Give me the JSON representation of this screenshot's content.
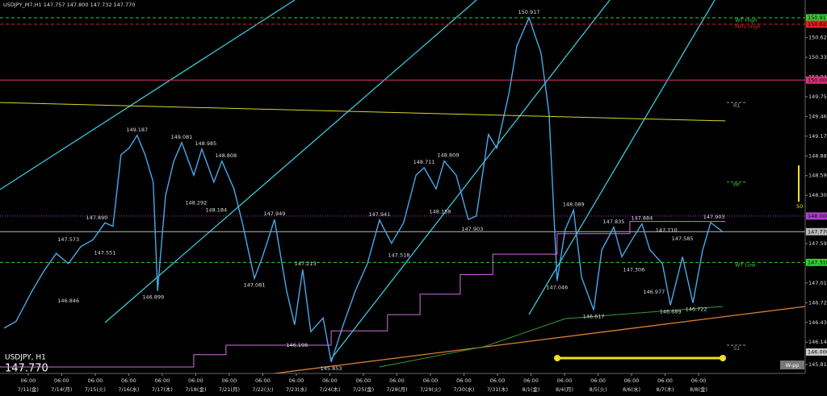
{
  "chart_data": {
    "type": "line",
    "header": "USDJPY_M7,H1  147.757 147.800 147.732 147.770",
    "symbol": "USDJPY, H1",
    "price": "147.770",
    "side_label": "50",
    "wpp": "W-pp",
    "xlim": [
      -0.84,
      23.18
    ],
    "ylim": [
      145.685,
      151.178
    ],
    "xticks": [
      {
        "value": 0,
        "label": "7/11(金)"
      },
      {
        "value": 1,
        "label": "7/14(月)"
      },
      {
        "value": 2,
        "label": "7/15(火)"
      },
      {
        "value": 3,
        "label": "7/16(水)"
      },
      {
        "value": 4,
        "label": "7/17(木)"
      },
      {
        "value": 5,
        "label": "7/18(金)"
      },
      {
        "value": 6,
        "label": "7/21(月)"
      },
      {
        "value": 7,
        "label": "7/22(火)"
      },
      {
        "value": 8,
        "label": "7/23(水)"
      },
      {
        "value": 9,
        "label": "7/24(木)"
      },
      {
        "value": 10,
        "label": "7/25(金)"
      },
      {
        "value": 11,
        "label": "7/28(月)"
      },
      {
        "value": 12,
        "label": "7/29(火)"
      },
      {
        "value": 13,
        "label": "7/30(水)"
      },
      {
        "value": 14,
        "label": "7/31(木)"
      },
      {
        "value": 15,
        "label": "8/1(金)"
      },
      {
        "value": 16,
        "label": "8/4(月)"
      },
      {
        "value": 17,
        "label": "8/5(火)"
      },
      {
        "value": 18,
        "label": "8/6(水)"
      },
      {
        "value": 19,
        "label": "8/7(木)"
      },
      {
        "value": 20,
        "label": "8/8(金)"
      }
    ],
    "xtick_times": [
      "06:00",
      "06:00",
      "06:00",
      "06:00",
      "06:00",
      "06:00",
      "06:00",
      "06:00",
      "06:00",
      "06:00",
      "06:00",
      "06:00",
      "06:00",
      "06:00",
      "06:00",
      "06:00",
      "06:00",
      "06:00",
      "06:00",
      "06:00",
      "06:00"
    ],
    "yticks": [
      150.625,
      150.335,
      150.045,
      149.755,
      149.465,
      149.175,
      148.885,
      148.595,
      148.305,
      147.595,
      147.015,
      146.725,
      146.435,
      146.145,
      145.815
    ],
    "series": [
      {
        "color": "#4aa8e8",
        "x": [
          -0.72,
          -0.36,
          0.12,
          0.48,
          0.84,
          1.2,
          1.57,
          1.93,
          2.29,
          2.53,
          2.77,
          3.01,
          3.25,
          3.49,
          3.73,
          3.86,
          4.1,
          4.34,
          4.58,
          4.94,
          5.18,
          5.54,
          5.78,
          6.14,
          6.39,
          6.75,
          6.99,
          7.35,
          7.71,
          7.95,
          8.19,
          8.43,
          8.8,
          9.04,
          9.4,
          9.76,
          10.12,
          10.48,
          10.84,
          11.2,
          11.57,
          11.81,
          12.17,
          12.41,
          12.77,
          13.13,
          13.37,
          13.73,
          13.98,
          14.34,
          14.58,
          14.94,
          15.3,
          15.54,
          15.78,
          16.02,
          16.27,
          16.51,
          16.87,
          17.11,
          17.47,
          17.71,
          18.07,
          18.31,
          18.55,
          18.92,
          19.16,
          19.52,
          19.83,
          20.12,
          20.36,
          20.72
        ],
        "values": [
          146.35,
          146.45,
          146.9,
          147.2,
          147.45,
          147.3,
          147.55,
          147.65,
          147.9,
          147.85,
          148.9,
          149.0,
          149.187,
          148.9,
          148.5,
          146.899,
          148.3,
          148.8,
          149.081,
          148.6,
          148.985,
          148.5,
          148.808,
          148.4,
          147.9,
          147.081,
          147.4,
          147.949,
          146.9,
          146.4,
          147.213,
          146.3,
          146.5,
          145.853,
          146.4,
          146.9,
          147.3,
          147.941,
          147.6,
          147.9,
          148.6,
          148.711,
          148.4,
          148.809,
          148.6,
          147.95,
          148.0,
          149.2,
          149.0,
          149.8,
          150.5,
          150.917,
          150.4,
          149.5,
          147.046,
          147.8,
          148.089,
          147.1,
          146.617,
          147.5,
          147.835,
          147.4,
          147.7,
          147.884,
          147.5,
          147.3,
          146.689,
          147.4,
          146.722,
          147.5,
          147.903,
          147.77
        ]
      },
      {
        "color": "#d6d62a",
        "x": [
          -0.84,
          20.8
        ],
        "values": [
          149.67,
          149.4
        ]
      },
      {
        "color": "#d070e0",
        "x": [
          -0.84,
          4.94,
          4.94,
          5.9,
          5.9,
          9.04,
          9.04,
          10.72,
          10.72,
          11.69,
          11.69,
          12.89,
          12.89,
          13.86,
          13.86,
          15.78,
          15.78,
          17.95,
          17.95,
          20.8
        ],
        "values": [
          145.78,
          145.78,
          145.96,
          145.96,
          146.1,
          146.1,
          146.31,
          146.31,
          146.55,
          146.55,
          146.85,
          146.85,
          147.14,
          147.14,
          147.44,
          147.44,
          147.74,
          147.74,
          147.92,
          147.92
        ]
      },
      {
        "color": "#3a9a3a",
        "x": [
          10.48,
          13.61,
          16.02,
          20.72
        ],
        "values": [
          145.78,
          146.08,
          146.49,
          146.67
        ]
      }
    ],
    "annotations": [
      {
        "x": 1.2,
        "value": 147.573,
        "side": "above"
      },
      {
        "x": 2.05,
        "value": 147.89,
        "label": "147.890",
        "side": "above"
      },
      {
        "x": 2.29,
        "value": 147.551,
        "side": "below"
      },
      {
        "x": 1.2,
        "value": 146.846,
        "side": "below"
      },
      {
        "x": 3.25,
        "value": 149.187,
        "side": "above"
      },
      {
        "x": 4.58,
        "value": 149.081,
        "side": "above"
      },
      {
        "x": 5.3,
        "value": 148.985,
        "side": "above"
      },
      {
        "x": 5.9,
        "value": 148.808,
        "side": "above"
      },
      {
        "x": 5.01,
        "value": 148.292,
        "side": "below"
      },
      {
        "x": 5.61,
        "value": 148.184,
        "side": "below"
      },
      {
        "x": 3.73,
        "value": 146.899,
        "side": "below"
      },
      {
        "x": 7.35,
        "value": 147.949,
        "side": "above"
      },
      {
        "x": 6.75,
        "value": 147.081,
        "side": "below"
      },
      {
        "x": 8.27,
        "value": 147.213,
        "side": "above"
      },
      {
        "x": 8.02,
        "value": 146.198,
        "side": "below"
      },
      {
        "x": 9.04,
        "value": 145.853,
        "side": "below"
      },
      {
        "x": 10.48,
        "value": 147.941,
        "side": "above"
      },
      {
        "x": 11.06,
        "value": 147.518,
        "side": "below"
      },
      {
        "x": 11.81,
        "value": 148.711,
        "side": "above"
      },
      {
        "x": 12.53,
        "value": 148.809,
        "side": "above"
      },
      {
        "x": 12.29,
        "value": 148.158,
        "side": "below"
      },
      {
        "x": 13.25,
        "value": 147.903,
        "side": "below"
      },
      {
        "x": 14.94,
        "value": 150.917,
        "side": "above"
      },
      {
        "x": 16.27,
        "value": 148.089,
        "side": "above"
      },
      {
        "x": 17.47,
        "value": 147.835,
        "side": "above"
      },
      {
        "x": 18.31,
        "value": 147.884,
        "side": "above"
      },
      {
        "x": 19.04,
        "value": 147.71,
        "label": "147.710",
        "side": "above"
      },
      {
        "x": 19.52,
        "value": 147.585,
        "side": "above"
      },
      {
        "x": 18.07,
        "value": 147.306,
        "side": "below"
      },
      {
        "x": 15.78,
        "value": 147.046,
        "side": "below"
      },
      {
        "x": 16.87,
        "value": 146.617,
        "side": "below"
      },
      {
        "x": 18.67,
        "value": 146.977,
        "side": "below"
      },
      {
        "x": 19.16,
        "value": 146.689,
        "side": "below"
      },
      {
        "x": 19.93,
        "value": 146.722,
        "side": "below"
      },
      {
        "x": 20.46,
        "value": 147.903,
        "side": "above"
      }
    ],
    "levels": [
      {
        "name": "WT High",
        "value": 150.917,
        "color": "#3c3",
        "style": "dash"
      },
      {
        "name": "MH1 High",
        "value": 150.822,
        "color": "#d22",
        "style": "dash"
      },
      {
        "value": 150,
        "label": "150.000",
        "color": "#e0307a",
        "style": "solid"
      },
      {
        "value": 148,
        "label": "148.000",
        "color": "#b040d0",
        "style": "dot"
      },
      {
        "value": 147.77,
        "label": "147.770",
        "color": "#bbb",
        "style": "solid"
      },
      {
        "name": "WT Low",
        "value": 147.318,
        "color": "#3c3",
        "style": "dash"
      },
      {
        "value": 146,
        "label": "146.000",
        "color": "#ccc",
        "style": "none"
      }
    ],
    "pivots": [
      {
        "name": "R1",
        "value": 149.67,
        "color": "#999"
      },
      {
        "name": "PP",
        "value": 148.5,
        "color": "#3c3"
      },
      {
        "name": "S1",
        "value": 146.1,
        "color": "#999"
      }
    ]
  }
}
